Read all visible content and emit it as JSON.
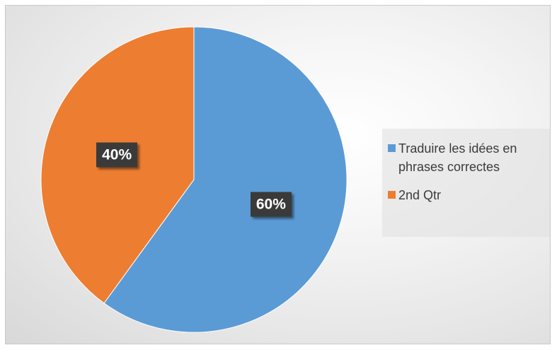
{
  "chart_data": {
    "type": "pie",
    "slices": [
      {
        "label": "Traduire les idées en phrases correctes",
        "value": 60,
        "percent_label": "60%",
        "color": "#5b9bd5"
      },
      {
        "label": "2nd Qtr",
        "value": 40,
        "percent_label": "40%",
        "color": "#ed7d31"
      }
    ],
    "legend_position": "right",
    "start_angle": "12 o'clock",
    "direction": "clockwise"
  }
}
